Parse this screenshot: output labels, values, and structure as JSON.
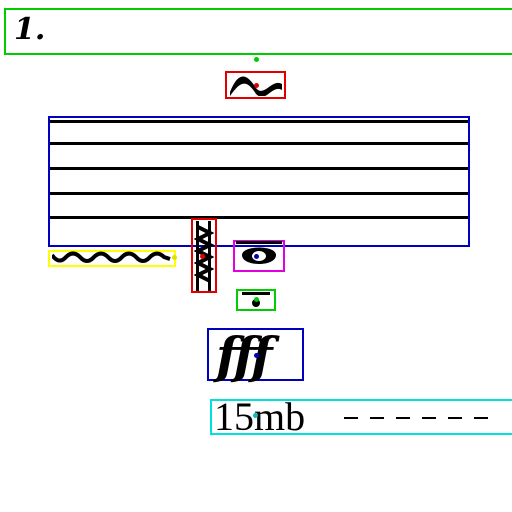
{
  "symbols": {
    "fingering": {
      "text": "1."
    },
    "dynamic": {
      "text": "fff"
    },
    "ottava": {
      "text": "15mb"
    }
  },
  "colors": {
    "green": "#00cc00",
    "red": "#e00000",
    "blue": "#0000c0",
    "yellow": "#ffff00",
    "magenta": "#e000e0",
    "cyan": "#00e0e0",
    "ink": "#000000"
  }
}
